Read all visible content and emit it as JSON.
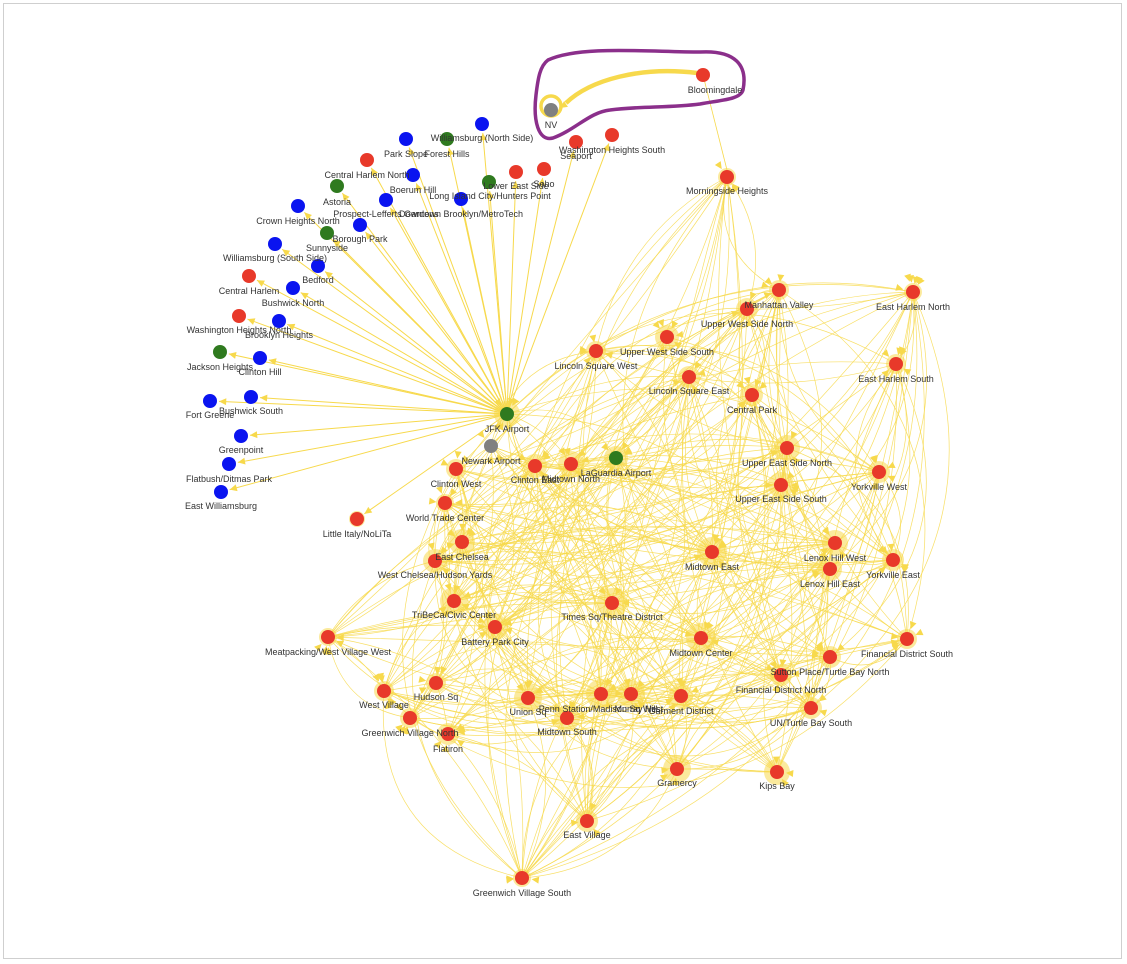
{
  "colors": {
    "edge": "#f7d94c",
    "halo": "#f7d94c",
    "red": "#e8392a",
    "blue": "#0a14f0",
    "green": "#2f7a1f",
    "gray": "#808080",
    "highlight": "#8b2f8b"
  },
  "nodes": [
    {
      "id": "bloomingdale",
      "label": "Bloomingdale",
      "color": "red"
    },
    {
      "id": "nv",
      "label": "NV",
      "color": "gray"
    },
    {
      "id": "washington-heights-south",
      "label": "Washington Heights South",
      "color": "red"
    },
    {
      "id": "seaport",
      "label": "Seaport",
      "color": "red"
    },
    {
      "id": "williamsburg-north",
      "label": "Williamsburg (North Side)",
      "color": "blue"
    },
    {
      "id": "forest-hills",
      "label": "Forest Hills",
      "color": "green"
    },
    {
      "id": "park-slope",
      "label": "Park Slope",
      "color": "blue"
    },
    {
      "id": "central-harlem-north",
      "label": "Central Harlem North",
      "color": "red"
    },
    {
      "id": "boerum-hill",
      "label": "Boerum Hill",
      "color": "blue"
    },
    {
      "id": "lower-east-side",
      "label": "Lower East Side",
      "color": "green"
    },
    {
      "id": "soho",
      "label": "Soho",
      "color": "red"
    },
    {
      "id": "lic",
      "label": "Long Island City/Hunters Point",
      "color": "red"
    },
    {
      "id": "astoria",
      "label": "Astoria",
      "color": "green"
    },
    {
      "id": "prospect-lefferts",
      "label": "Prospect-Lefferts Gardens",
      "color": "blue"
    },
    {
      "id": "downtown-brooklyn",
      "label": "Downtown Brooklyn/MetroTech",
      "color": "blue"
    },
    {
      "id": "crown-heights-north",
      "label": "Crown Heights North",
      "color": "blue"
    },
    {
      "id": "borough-park",
      "label": "Borough Park",
      "color": "blue"
    },
    {
      "id": "sunnyside",
      "label": "Sunnyside",
      "color": "green"
    },
    {
      "id": "williamsburg-south",
      "label": "Williamsburg (South Side)",
      "color": "blue"
    },
    {
      "id": "bedford",
      "label": "Bedford",
      "color": "blue"
    },
    {
      "id": "central-harlem",
      "label": "Central Harlem",
      "color": "red"
    },
    {
      "id": "bushwick-north",
      "label": "Bushwick North",
      "color": "blue"
    },
    {
      "id": "washington-heights-north",
      "label": "Washington Heights North",
      "color": "red"
    },
    {
      "id": "brooklyn-heights",
      "label": "Brooklyn Heights",
      "color": "blue"
    },
    {
      "id": "jackson-heights",
      "label": "Jackson Heights",
      "color": "green"
    },
    {
      "id": "clinton-hill",
      "label": "Clinton Hill",
      "color": "blue"
    },
    {
      "id": "fort-greene",
      "label": "Fort Greene",
      "color": "blue"
    },
    {
      "id": "bushwick-south",
      "label": "Bushwick South",
      "color": "blue"
    },
    {
      "id": "greenpoint",
      "label": "Greenpoint",
      "color": "blue"
    },
    {
      "id": "flatbush",
      "label": "Flatbush/Ditmas Park",
      "color": "blue"
    },
    {
      "id": "east-williamsburg",
      "label": "East Williamsburg",
      "color": "blue"
    },
    {
      "id": "morningside-heights",
      "label": "Morningside Heights",
      "color": "red"
    },
    {
      "id": "manhattan-valley",
      "label": "Manhattan Valley",
      "color": "red"
    },
    {
      "id": "upper-west-side-north",
      "label": "Upper West Side North",
      "color": "red"
    },
    {
      "id": "east-harlem-north",
      "label": "East Harlem North",
      "color": "red"
    },
    {
      "id": "upper-west-side-south",
      "label": "Upper West Side South",
      "color": "red"
    },
    {
      "id": "lincoln-square-west",
      "label": "Lincoln Square West",
      "color": "red"
    },
    {
      "id": "east-harlem-south",
      "label": "East Harlem South",
      "color": "red"
    },
    {
      "id": "lincoln-square-east",
      "label": "Lincoln Square East",
      "color": "red"
    },
    {
      "id": "central-park",
      "label": "Central Park",
      "color": "red"
    },
    {
      "id": "jfk-airport",
      "label": "JFK Airport",
      "color": "green"
    },
    {
      "id": "newark-airport",
      "label": "Newark Airport",
      "color": "gray"
    },
    {
      "id": "laguardia-airport",
      "label": "LaGuardia Airport",
      "color": "green"
    },
    {
      "id": "upper-east-side-north",
      "label": "Upper East Side North",
      "color": "red"
    },
    {
      "id": "clinton-west",
      "label": "Clinton West",
      "color": "red"
    },
    {
      "id": "clinton-east",
      "label": "Clinton East",
      "color": "red"
    },
    {
      "id": "midtown-north",
      "label": "Midtown North",
      "color": "red"
    },
    {
      "id": "yorkville-west",
      "label": "Yorkville West",
      "color": "red"
    },
    {
      "id": "upper-east-side-south",
      "label": "Upper East Side South",
      "color": "red"
    },
    {
      "id": "world-trade-center",
      "label": "World Trade Center",
      "color": "red"
    },
    {
      "id": "little-italy",
      "label": "Little Italy/NoLiTa",
      "color": "red"
    },
    {
      "id": "east-chelsea",
      "label": "East Chelsea",
      "color": "red"
    },
    {
      "id": "west-chelsea",
      "label": "West Chelsea/Hudson Yards",
      "color": "red"
    },
    {
      "id": "midtown-east",
      "label": "Midtown East",
      "color": "red"
    },
    {
      "id": "lenox-hill-west",
      "label": "Lenox Hill West",
      "color": "red"
    },
    {
      "id": "yorkville-east",
      "label": "Yorkville East",
      "color": "red"
    },
    {
      "id": "lenox-hill-east",
      "label": "Lenox Hill East",
      "color": "red"
    },
    {
      "id": "tribeca",
      "label": "TriBeCa/Civic Center",
      "color": "red"
    },
    {
      "id": "times-sq",
      "label": "Times Sq/Theatre District",
      "color": "red"
    },
    {
      "id": "battery-park-city",
      "label": "Battery Park City",
      "color": "red"
    },
    {
      "id": "meatpacking",
      "label": "Meatpacking/West Village West",
      "color": "red"
    },
    {
      "id": "midtown-center",
      "label": "Midtown Center",
      "color": "red"
    },
    {
      "id": "financial-district-south",
      "label": "Financial District South",
      "color": "red"
    },
    {
      "id": "sutton-place",
      "label": "Sutton Place/Turtle Bay North",
      "color": "red"
    },
    {
      "id": "financial-district-north",
      "label": "Financial District North",
      "color": "red"
    },
    {
      "id": "hudson-sq",
      "label": "Hudson Sq",
      "color": "red"
    },
    {
      "id": "west-village",
      "label": "West Village",
      "color": "red"
    },
    {
      "id": "union-sq",
      "label": "Union Sq",
      "color": "red"
    },
    {
      "id": "penn-station",
      "label": "Penn Station/Madison Sq West",
      "color": "red"
    },
    {
      "id": "murray-hill",
      "label": "Murray Hill",
      "color": "red"
    },
    {
      "id": "garment-district",
      "label": "Garment District",
      "color": "red"
    },
    {
      "id": "un-turtle-bay",
      "label": "UN/Turtle Bay South",
      "color": "red"
    },
    {
      "id": "greenwich-village-north",
      "label": "Greenwich Village North",
      "color": "red"
    },
    {
      "id": "flatiron",
      "label": "Flatiron",
      "color": "red"
    },
    {
      "id": "midtown-south",
      "label": "Midtown South",
      "color": "red"
    },
    {
      "id": "gramercy",
      "label": "Gramercy",
      "color": "red"
    },
    {
      "id": "kips-bay",
      "label": "Kips Bay",
      "color": "red"
    },
    {
      "id": "east-village",
      "label": "East Village",
      "color": "red"
    },
    {
      "id": "greenwich-village-south",
      "label": "Greenwich Village South",
      "color": "red"
    }
  ]
}
